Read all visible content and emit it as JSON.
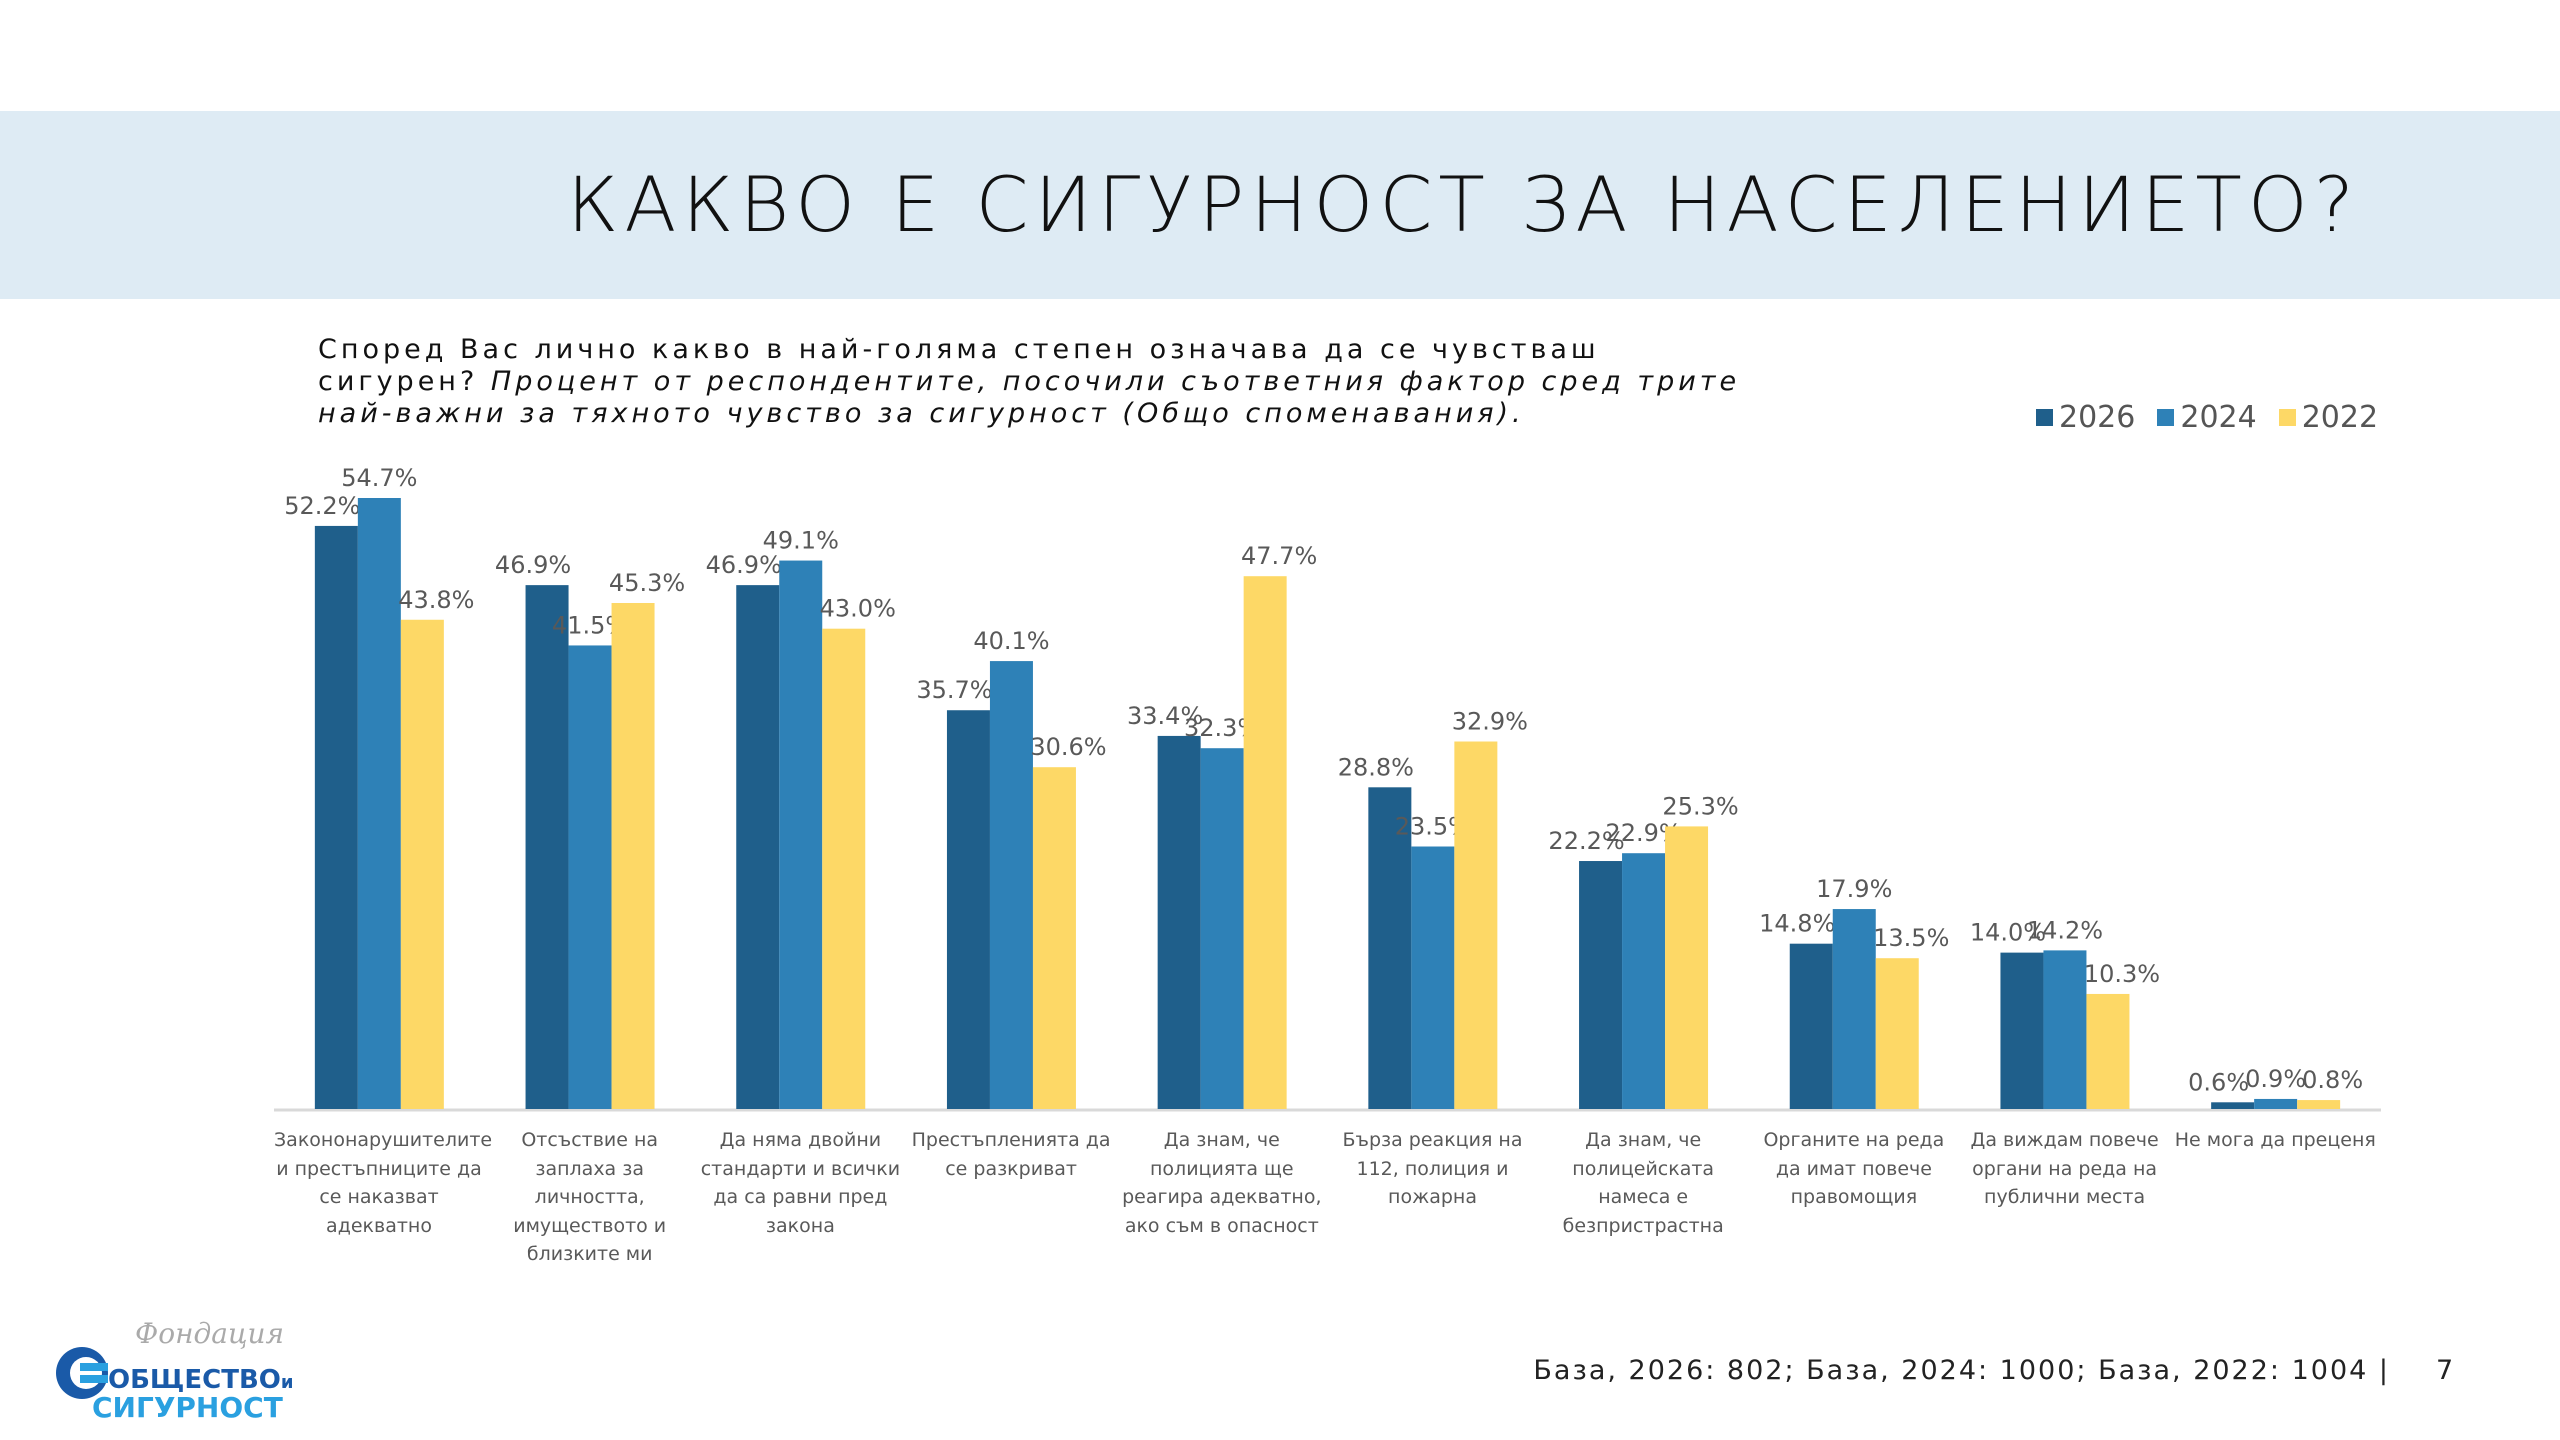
{
  "header": {
    "title": "КАКВО Е СИГУРНОСТ ЗА НАСЕЛЕНИЕТО?"
  },
  "question": {
    "text": "Според Вас лично какво в най-голяма степен означава да се чувстваш сигурен?",
    "note": "Процент от респондентите, посочили съответния фактор сред трите най-важни за тяхното чувство за сигурност (Общо споменавания)."
  },
  "chart_data": {
    "type": "bar",
    "title": "",
    "xlabel": "",
    "ylabel": "",
    "ylim": [
      0,
      60
    ],
    "grid": false,
    "legend_position": "top-right",
    "categories": [
      "Закононарушителите и престъпниците да се наказват адекватно",
      "Отсъствие на заплаха за личността, имуществото и близките ми",
      "Да няма двойни стандарти и всички да са равни пред закона",
      "Престъпленията да се разкриват",
      "Да знам, че полицията ще реагира адекватно, ако съм в опасност",
      "Бърза реакция на 112, полиция и пожарна",
      "Да знам, че полицейската намеса е безпристрастна",
      "Органите на реда да имат повече правомощия",
      "Да виждам повече органи на реда на публични места",
      "Не мога да преценя"
    ],
    "series": [
      {
        "name": "2026",
        "color": "#1f5f8b",
        "values": [
          52.2,
          46.9,
          46.9,
          35.7,
          33.4,
          28.8,
          22.2,
          14.8,
          14.0,
          0.6
        ]
      },
      {
        "name": "2024",
        "color": "#2e81b7",
        "values": [
          54.7,
          41.5,
          49.1,
          40.1,
          32.3,
          23.5,
          22.9,
          17.9,
          14.2,
          0.9
        ]
      },
      {
        "name": "2022",
        "color": "#fdd866",
        "values": [
          43.8,
          45.3,
          43.0,
          30.6,
          47.7,
          32.9,
          25.3,
          13.5,
          10.3,
          0.8
        ]
      }
    ]
  },
  "footer": {
    "base": "База, 2026: 802; База, 2024: 1000; База, 2022: 1004 |",
    "page": "7"
  },
  "logo": {
    "script": "Фондация",
    "line1": "ОБЩЕСТВО",
    "conj": "и",
    "line2": "СИГУРНОСТ"
  }
}
